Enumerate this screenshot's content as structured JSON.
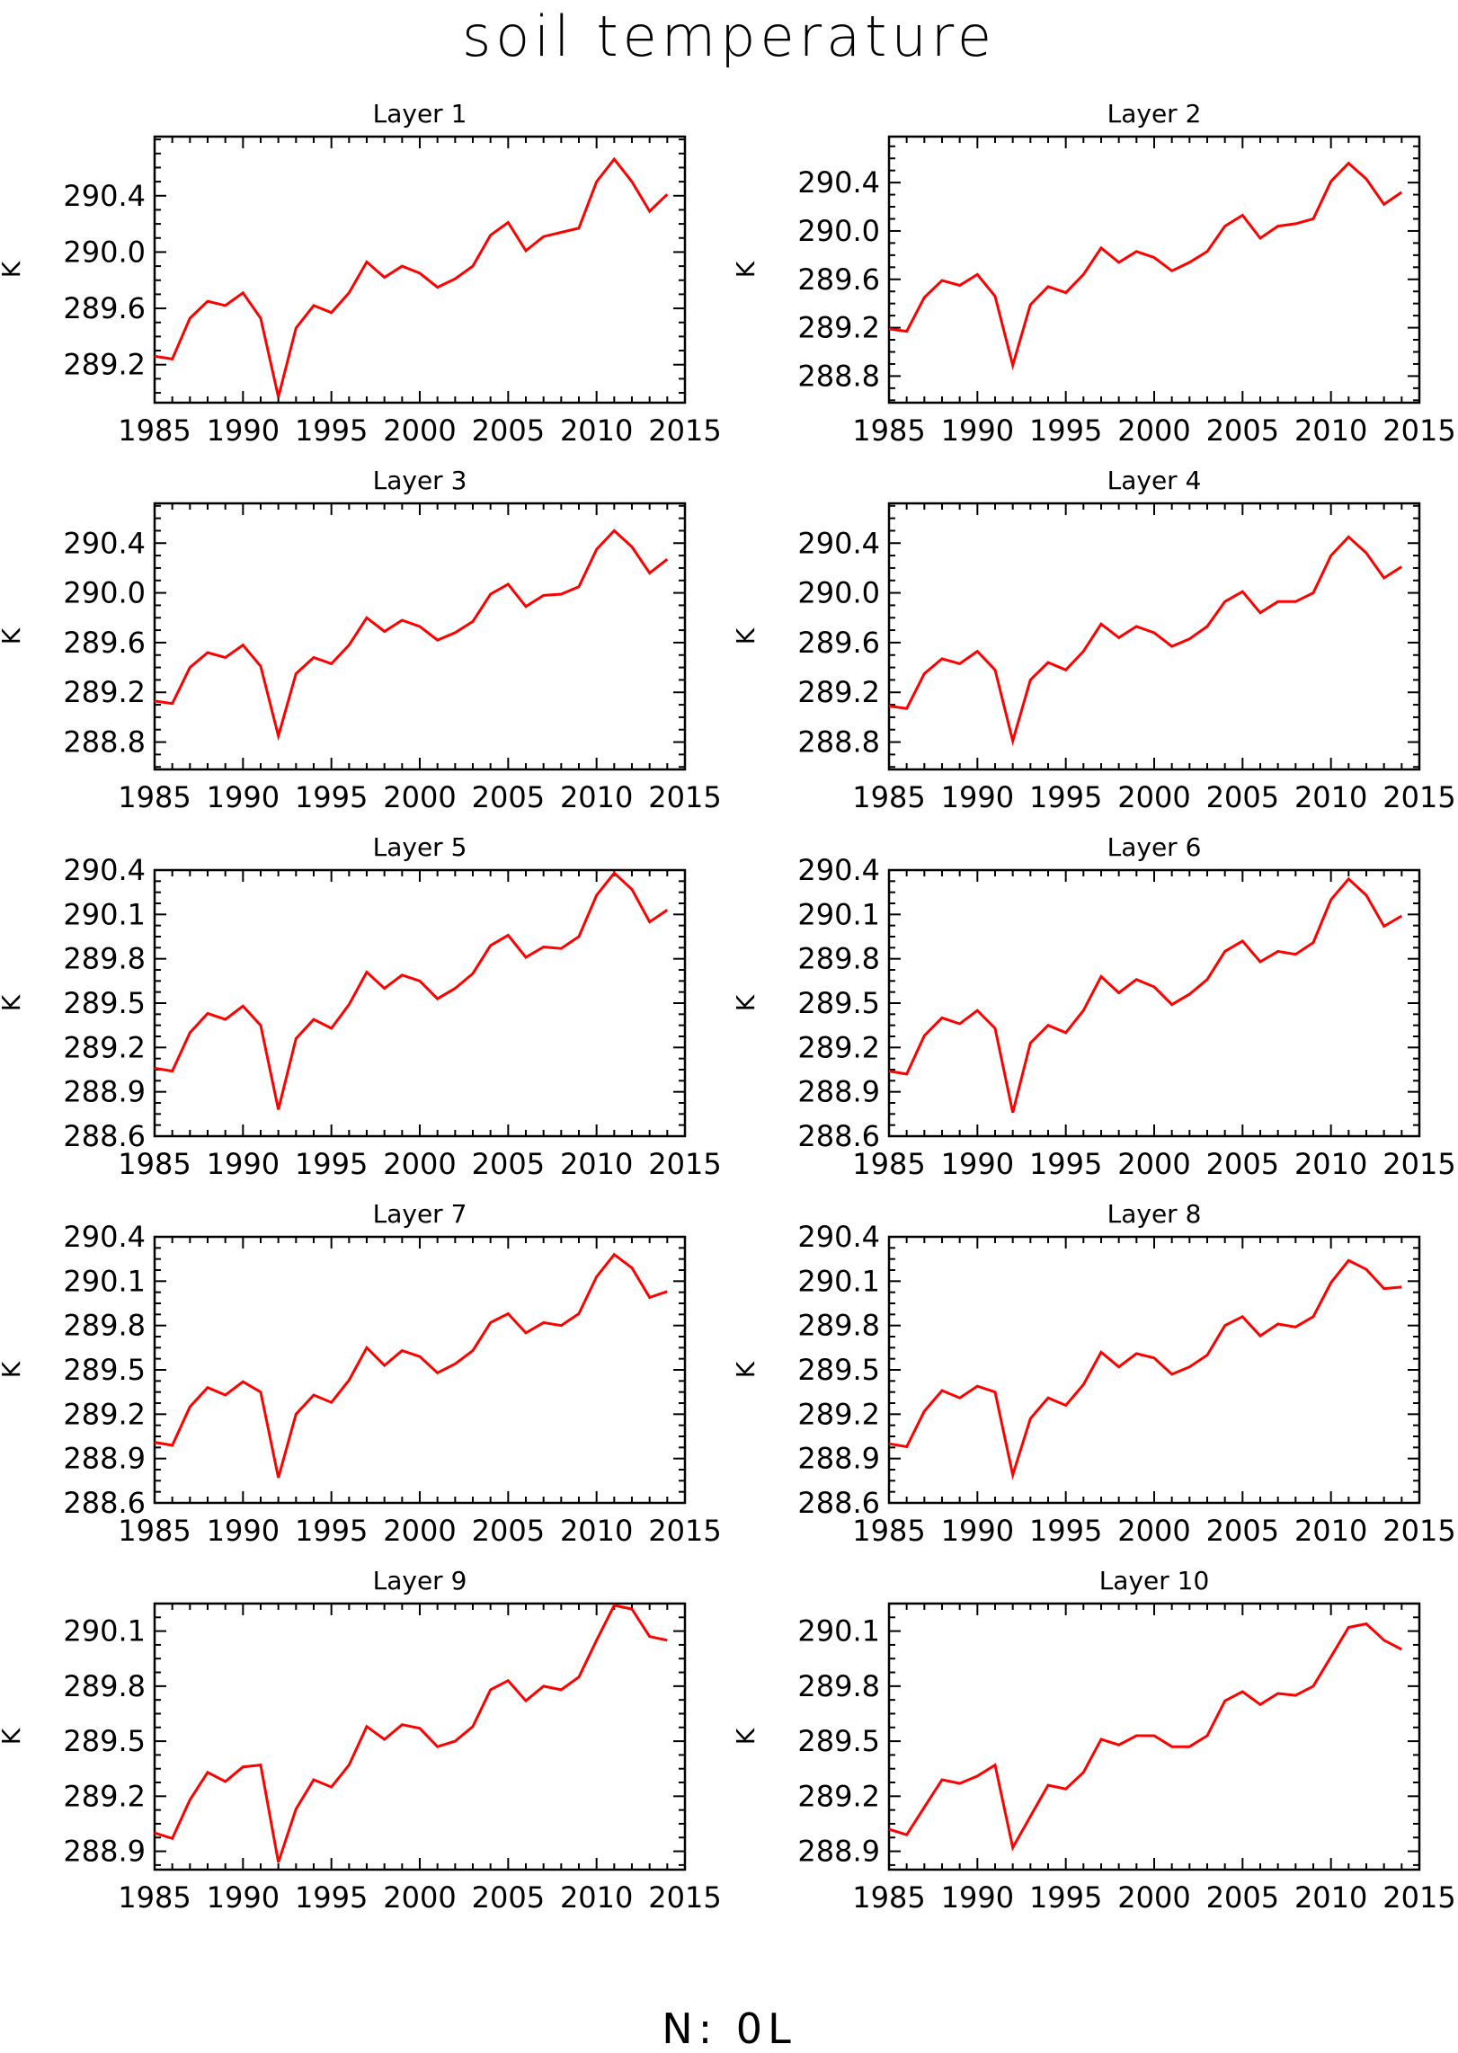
{
  "title": "soil temperature",
  "footer": "N: 0L",
  "colors": {
    "series": "#ff0000",
    "axis": "#000000",
    "background": "#ffffff"
  },
  "chart_data": [
    {
      "type": "line",
      "title": "Layer 1",
      "xlabel": "",
      "ylabel": "K",
      "xlim": [
        1985,
        2015
      ],
      "ylim": [
        288.93,
        290.82
      ],
      "xticks": [
        1985,
        1990,
        1995,
        2000,
        2005,
        2010,
        2015
      ],
      "yticks": [
        289.2,
        289.6,
        290.0,
        290.4
      ],
      "ytick_labels": [
        "289.2",
        "289.6",
        "290.0",
        "290.4"
      ],
      "x": [
        1985,
        1986,
        1987,
        1988,
        1989,
        1990,
        1991,
        1992,
        1993,
        1994,
        1995,
        1996,
        1997,
        1998,
        1999,
        2000,
        2001,
        2002,
        2003,
        2004,
        2005,
        2006,
        2007,
        2008,
        2009,
        2010,
        2011,
        2012,
        2013,
        2014
      ],
      "y": [
        289.26,
        289.24,
        289.53,
        289.65,
        289.62,
        289.71,
        289.53,
        288.97,
        289.46,
        289.62,
        289.57,
        289.71,
        289.93,
        289.82,
        289.9,
        289.85,
        289.75,
        289.81,
        289.9,
        290.12,
        290.21,
        290.01,
        290.11,
        290.14,
        290.17,
        290.5,
        290.66,
        290.5,
        290.29,
        290.41
      ]
    },
    {
      "type": "line",
      "title": "Layer 2",
      "xlabel": "",
      "ylabel": "K",
      "xlim": [
        1985,
        2015
      ],
      "ylim": [
        288.58,
        290.78
      ],
      "xticks": [
        1985,
        1990,
        1995,
        2000,
        2005,
        2010,
        2015
      ],
      "yticks": [
        288.8,
        289.2,
        289.6,
        290.0,
        290.4
      ],
      "ytick_labels": [
        "288.8",
        "289.2",
        "289.6",
        "290.0",
        "290.4"
      ],
      "x": [
        1985,
        1986,
        1987,
        1988,
        1989,
        1990,
        1991,
        1992,
        1993,
        1994,
        1995,
        1996,
        1997,
        1998,
        1999,
        2000,
        2001,
        2002,
        2003,
        2004,
        2005,
        2006,
        2007,
        2008,
        2009,
        2010,
        2011,
        2012,
        2013,
        2014
      ],
      "y": [
        289.19,
        289.17,
        289.45,
        289.59,
        289.55,
        289.64,
        289.46,
        288.89,
        289.39,
        289.54,
        289.49,
        289.64,
        289.86,
        289.74,
        289.83,
        289.78,
        289.67,
        289.74,
        289.83,
        290.04,
        290.13,
        289.94,
        290.04,
        290.06,
        290.1,
        290.41,
        290.56,
        290.43,
        290.22,
        290.32
      ]
    },
    {
      "type": "line",
      "title": "Layer 3",
      "xlabel": "",
      "ylabel": "K",
      "xlim": [
        1985,
        2015
      ],
      "ylim": [
        288.58,
        290.72
      ],
      "xticks": [
        1985,
        1990,
        1995,
        2000,
        2005,
        2010,
        2015
      ],
      "yticks": [
        288.8,
        289.2,
        289.6,
        290.0,
        290.4
      ],
      "ytick_labels": [
        "288.8",
        "289.2",
        "289.6",
        "290.0",
        "290.4"
      ],
      "x": [
        1985,
        1986,
        1987,
        1988,
        1989,
        1990,
        1991,
        1992,
        1993,
        1994,
        1995,
        1996,
        1997,
        1998,
        1999,
        2000,
        2001,
        2002,
        2003,
        2004,
        2005,
        2006,
        2007,
        2008,
        2009,
        2010,
        2011,
        2012,
        2013,
        2014
      ],
      "y": [
        289.13,
        289.11,
        289.4,
        289.52,
        289.48,
        289.58,
        289.41,
        288.85,
        289.35,
        289.48,
        289.43,
        289.58,
        289.8,
        289.69,
        289.78,
        289.73,
        289.62,
        289.68,
        289.77,
        289.99,
        290.07,
        289.89,
        289.98,
        289.99,
        290.05,
        290.35,
        290.5,
        290.37,
        290.16,
        290.27
      ]
    },
    {
      "type": "line",
      "title": "Layer 4",
      "xlabel": "",
      "ylabel": "K",
      "xlim": [
        1985,
        2015
      ],
      "ylim": [
        288.58,
        290.72
      ],
      "xticks": [
        1985,
        1990,
        1995,
        2000,
        2005,
        2010,
        2015
      ],
      "yticks": [
        288.8,
        289.2,
        289.6,
        290.0,
        290.4
      ],
      "ytick_labels": [
        "288.8",
        "289.2",
        "289.6",
        "290.0",
        "290.4"
      ],
      "x": [
        1985,
        1986,
        1987,
        1988,
        1989,
        1990,
        1991,
        1992,
        1993,
        1994,
        1995,
        1996,
        1997,
        1998,
        1999,
        2000,
        2001,
        2002,
        2003,
        2004,
        2005,
        2006,
        2007,
        2008,
        2009,
        2010,
        2011,
        2012,
        2013,
        2014
      ],
      "y": [
        289.09,
        289.07,
        289.35,
        289.47,
        289.43,
        289.53,
        289.38,
        288.81,
        289.3,
        289.44,
        289.38,
        289.53,
        289.75,
        289.64,
        289.73,
        289.68,
        289.57,
        289.63,
        289.73,
        289.93,
        290.01,
        289.84,
        289.93,
        289.93,
        290.0,
        290.3,
        290.45,
        290.32,
        290.12,
        290.21
      ]
    },
    {
      "type": "line",
      "title": "Layer 5",
      "xlabel": "",
      "ylabel": "K",
      "xlim": [
        1985,
        2015
      ],
      "ylim": [
        288.6,
        290.4
      ],
      "xticks": [
        1985,
        1990,
        1995,
        2000,
        2005,
        2010,
        2015
      ],
      "yticks": [
        288.6,
        288.9,
        289.2,
        289.5,
        289.8,
        290.1,
        290.4
      ],
      "ytick_labels": [
        "288.6",
        "288.9",
        "289.2",
        "289.5",
        "289.8",
        "290.1",
        "290.4"
      ],
      "x": [
        1985,
        1986,
        1987,
        1988,
        1989,
        1990,
        1991,
        1992,
        1993,
        1994,
        1995,
        1996,
        1997,
        1998,
        1999,
        2000,
        2001,
        2002,
        2003,
        2004,
        2005,
        2006,
        2007,
        2008,
        2009,
        2010,
        2011,
        2012,
        2013,
        2014
      ],
      "y": [
        289.06,
        289.04,
        289.3,
        289.43,
        289.39,
        289.48,
        289.35,
        288.78,
        289.26,
        289.39,
        289.33,
        289.49,
        289.71,
        289.6,
        289.69,
        289.65,
        289.53,
        289.6,
        289.7,
        289.89,
        289.96,
        289.81,
        289.88,
        289.87,
        289.95,
        290.23,
        290.38,
        290.27,
        290.05,
        290.13
      ]
    },
    {
      "type": "line",
      "title": "Layer 6",
      "xlabel": "",
      "ylabel": "K",
      "xlim": [
        1985,
        2015
      ],
      "ylim": [
        288.6,
        290.4
      ],
      "xticks": [
        1985,
        1990,
        1995,
        2000,
        2005,
        2010,
        2015
      ],
      "yticks": [
        288.6,
        288.9,
        289.2,
        289.5,
        289.8,
        290.1,
        290.4
      ],
      "ytick_labels": [
        "288.6",
        "288.9",
        "289.2",
        "289.5",
        "289.8",
        "290.1",
        "290.4"
      ],
      "x": [
        1985,
        1986,
        1987,
        1988,
        1989,
        1990,
        1991,
        1992,
        1993,
        1994,
        1995,
        1996,
        1997,
        1998,
        1999,
        2000,
        2001,
        2002,
        2003,
        2004,
        2005,
        2006,
        2007,
        2008,
        2009,
        2010,
        2011,
        2012,
        2013,
        2014
      ],
      "y": [
        289.04,
        289.02,
        289.28,
        289.4,
        289.36,
        289.45,
        289.33,
        288.76,
        289.23,
        289.35,
        289.3,
        289.45,
        289.68,
        289.57,
        289.66,
        289.61,
        289.49,
        289.56,
        289.66,
        289.85,
        289.92,
        289.78,
        289.85,
        289.83,
        289.91,
        290.2,
        290.34,
        290.23,
        290.02,
        290.09
      ]
    },
    {
      "type": "line",
      "title": "Layer 7",
      "xlabel": "",
      "ylabel": "K",
      "xlim": [
        1985,
        2015
      ],
      "ylim": [
        288.6,
        290.4
      ],
      "xticks": [
        1985,
        1990,
        1995,
        2000,
        2005,
        2010,
        2015
      ],
      "yticks": [
        288.6,
        288.9,
        289.2,
        289.5,
        289.8,
        290.1,
        290.4
      ],
      "ytick_labels": [
        "288.6",
        "288.9",
        "289.2",
        "289.5",
        "289.8",
        "290.1",
        "290.4"
      ],
      "x": [
        1985,
        1986,
        1987,
        1988,
        1989,
        1990,
        1991,
        1992,
        1993,
        1994,
        1995,
        1996,
        1997,
        1998,
        1999,
        2000,
        2001,
        2002,
        2003,
        2004,
        2005,
        2006,
        2007,
        2008,
        2009,
        2010,
        2011,
        2012,
        2013,
        2014
      ],
      "y": [
        289.01,
        288.99,
        289.25,
        289.38,
        289.33,
        289.42,
        289.35,
        288.77,
        289.2,
        289.33,
        289.28,
        289.43,
        289.65,
        289.53,
        289.63,
        289.59,
        289.48,
        289.54,
        289.63,
        289.82,
        289.88,
        289.75,
        289.82,
        289.8,
        289.88,
        290.13,
        290.28,
        290.19,
        289.99,
        290.03
      ]
    },
    {
      "type": "line",
      "title": "Layer 8",
      "xlabel": "",
      "ylabel": "K",
      "xlim": [
        1985,
        2015
      ],
      "ylim": [
        288.6,
        290.4
      ],
      "xticks": [
        1985,
        1990,
        1995,
        2000,
        2005,
        2010,
        2015
      ],
      "yticks": [
        288.6,
        288.9,
        289.2,
        289.5,
        289.8,
        290.1,
        290.4
      ],
      "ytick_labels": [
        "288.6",
        "288.9",
        "289.2",
        "289.5",
        "289.8",
        "290.1",
        "290.4"
      ],
      "x": [
        1985,
        1986,
        1987,
        1988,
        1989,
        1990,
        1991,
        1992,
        1993,
        1994,
        1995,
        1996,
        1997,
        1998,
        1999,
        2000,
        2001,
        2002,
        2003,
        2004,
        2005,
        2006,
        2007,
        2008,
        2009,
        2010,
        2011,
        2012,
        2013,
        2014
      ],
      "y": [
        289.0,
        288.98,
        289.22,
        289.36,
        289.31,
        289.39,
        289.35,
        288.79,
        289.17,
        289.31,
        289.26,
        289.4,
        289.62,
        289.52,
        289.61,
        289.58,
        289.47,
        289.52,
        289.6,
        289.8,
        289.86,
        289.73,
        289.81,
        289.79,
        289.86,
        290.09,
        290.24,
        290.18,
        290.05,
        290.06
      ]
    },
    {
      "type": "line",
      "title": "Layer 9",
      "xlabel": "",
      "ylabel": "K",
      "xlim": [
        1985,
        2015
      ],
      "ylim": [
        288.8,
        290.25
      ],
      "xticks": [
        1985,
        1990,
        1995,
        2000,
        2005,
        2010,
        2015
      ],
      "yticks": [
        288.9,
        289.2,
        289.5,
        289.8,
        290.1
      ],
      "ytick_labels": [
        "288.9",
        "289.2",
        "289.5",
        "289.8",
        "290.1"
      ],
      "x": [
        1985,
        1986,
        1987,
        1988,
        1989,
        1990,
        1991,
        1992,
        1993,
        1994,
        1995,
        1996,
        1997,
        1998,
        1999,
        2000,
        2001,
        2002,
        2003,
        2004,
        2005,
        2006,
        2007,
        2008,
        2009,
        2010,
        2011,
        2012,
        2013,
        2014
      ],
      "y": [
        289.0,
        288.97,
        289.18,
        289.33,
        289.28,
        289.36,
        289.37,
        288.84,
        289.13,
        289.29,
        289.25,
        289.37,
        289.58,
        289.51,
        289.59,
        289.57,
        289.47,
        289.5,
        289.58,
        289.78,
        289.83,
        289.72,
        289.8,
        289.78,
        289.85,
        290.05,
        290.24,
        290.22,
        290.07,
        290.05
      ]
    },
    {
      "type": "line",
      "title": "Layer 10",
      "xlabel": "",
      "ylabel": "K",
      "xlim": [
        1985,
        2015
      ],
      "ylim": [
        288.8,
        290.25
      ],
      "xticks": [
        1985,
        1990,
        1995,
        2000,
        2005,
        2010,
        2015
      ],
      "yticks": [
        288.9,
        289.2,
        289.5,
        289.8,
        290.1
      ],
      "ytick_labels": [
        "288.9",
        "289.2",
        "289.5",
        "289.8",
        "290.1"
      ],
      "x": [
        1985,
        1986,
        1987,
        1988,
        1989,
        1990,
        1991,
        1992,
        1993,
        1994,
        1995,
        1996,
        1997,
        1998,
        1999,
        2000,
        2001,
        2002,
        2003,
        2004,
        2005,
        2006,
        2007,
        2008,
        2009,
        2010,
        2011,
        2012,
        2013,
        2014
      ],
      "y": [
        289.02,
        288.99,
        289.14,
        289.29,
        289.27,
        289.31,
        289.37,
        288.92,
        289.09,
        289.26,
        289.24,
        289.33,
        289.51,
        289.48,
        289.53,
        289.53,
        289.47,
        289.47,
        289.53,
        289.72,
        289.77,
        289.7,
        289.76,
        289.75,
        289.8,
        289.96,
        290.12,
        290.14,
        290.05,
        290.0
      ]
    }
  ]
}
